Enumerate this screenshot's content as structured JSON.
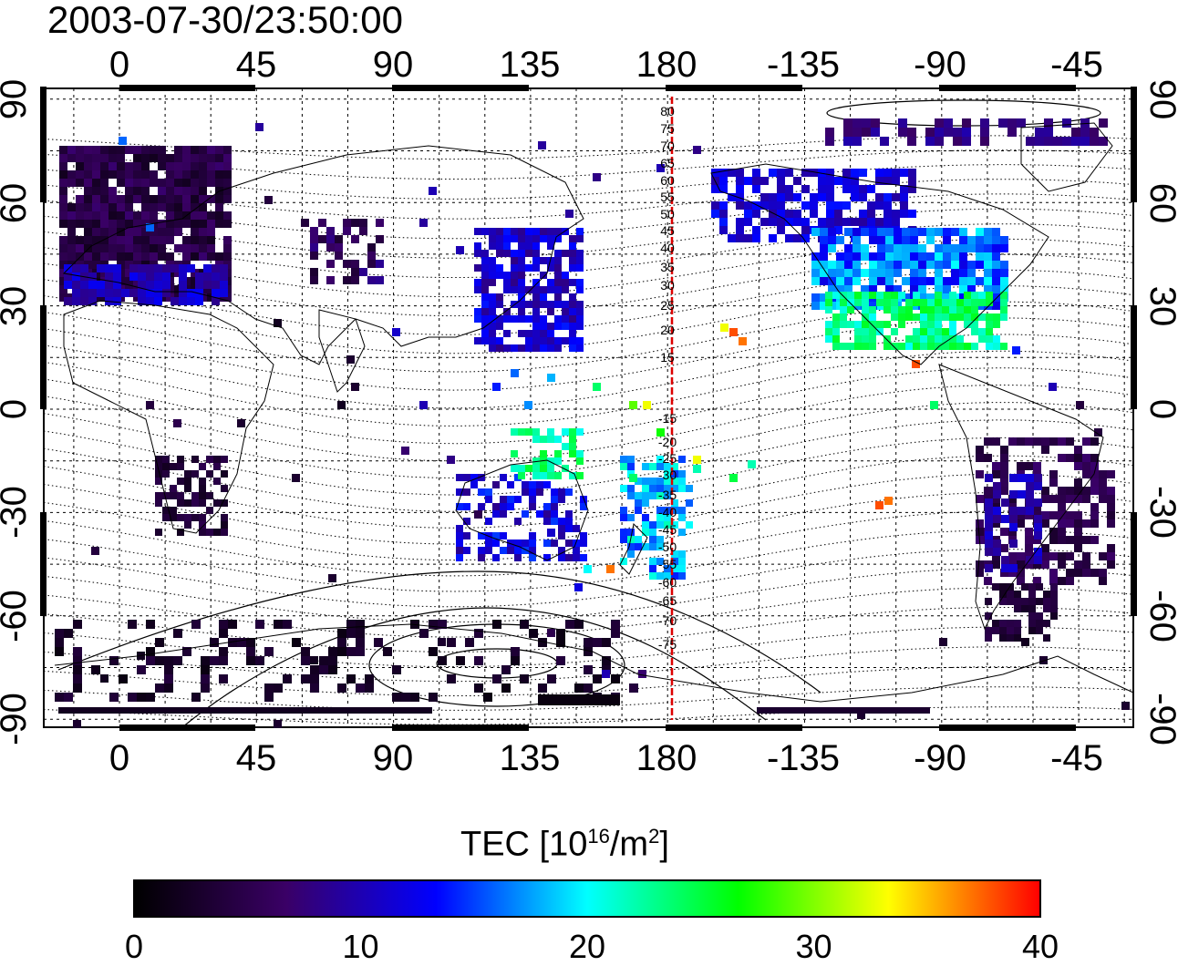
{
  "title": "2003-07-30/23:50:00",
  "map": {
    "lon_ticks": [
      "0",
      "45",
      "90",
      "135",
      "180",
      "-135",
      "-90",
      "-45"
    ],
    "lat_ticks": [
      "90",
      "60",
      "30",
      "0",
      "-30",
      "-60",
      "-90"
    ],
    "magnetic_latitude_labels": [
      "80",
      "75",
      "70",
      "65",
      "60",
      "55",
      "50",
      "45",
      "40",
      "35",
      "30",
      "25",
      "20",
      "15",
      "-15",
      "-20",
      "-25",
      "-30",
      "-35",
      "-40",
      "-45",
      "-50",
      "-55",
      "-60",
      "-65",
      "-70",
      "-75"
    ],
    "meridian_line_lon": 180
  },
  "colorbar": {
    "title_prefix": "TEC  [10",
    "title_exp1": "16",
    "title_mid": "/m",
    "title_exp2": "2",
    "title_suffix": "]",
    "min": 0,
    "max": 40,
    "labels": [
      "0",
      "10",
      "20",
      "30",
      "40"
    ],
    "colors": [
      "#000000",
      "#3a0066",
      "#0000ff",
      "#00ffff",
      "#00ff00",
      "#ffff00",
      "#ff0000"
    ]
  }
}
